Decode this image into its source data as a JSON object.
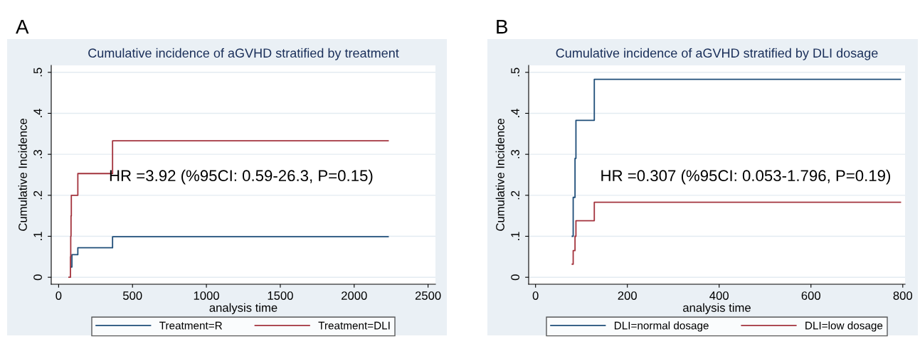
{
  "chart_data": [
    {
      "type": "step",
      "title": "Cumulative incidence of aGVHD stratified by treatment",
      "xlabel": "analysis time",
      "ylabel": "Cumulative Incidence",
      "xlim": [
        -50,
        2550
      ],
      "xticks": [
        0,
        500,
        1000,
        1500,
        2000,
        2500
      ],
      "ylim": [
        -0.017,
        0.517
      ],
      "yticks": [
        {
          "value": 0,
          "label": "0"
        },
        {
          "value": 0.1,
          "label": ".1"
        },
        {
          "value": 0.2,
          "label": ".2"
        },
        {
          "value": 0.3,
          "label": ".3"
        },
        {
          "value": 0.4,
          "label": ".4"
        },
        {
          "value": 0.5,
          "label": ".5"
        }
      ],
      "grid": "y",
      "legend": "bottom",
      "annotations": [
        "A",
        "HR =3.92 (%95CI: 0.59-26.3, P=0.15)"
      ],
      "series": [
        {
          "name": "Treatment=R",
          "color": "#1f4e79",
          "x": [
            85,
            90,
            130,
            365,
            2230
          ],
          "values": [
            0.025,
            0.055,
            0.072,
            0.099,
            0.099
          ]
        },
        {
          "name": "Treatment=DLI",
          "color": "#a3333d",
          "x": [
            70,
            80,
            82,
            84,
            86,
            90,
            130,
            365,
            2230
          ],
          "values": [
            0,
            0.05,
            0.1,
            0.15,
            0.2,
            0.2,
            0.253,
            0.333,
            0.333
          ]
        }
      ]
    },
    {
      "type": "step",
      "title": "Cumulative incidence of aGVHD stratified by DLI dosage",
      "xlabel": "analysis time",
      "ylabel": "Cumulative Incidence",
      "xlim": [
        -15,
        805
      ],
      "xticks": [
        0,
        200,
        400,
        600,
        800
      ],
      "ylim": [
        -0.017,
        0.517
      ],
      "yticks": [
        {
          "value": 0,
          "label": "0"
        },
        {
          "value": 0.1,
          "label": ".1"
        },
        {
          "value": 0.2,
          "label": ".2"
        },
        {
          "value": 0.3,
          "label": ".3"
        },
        {
          "value": 0.4,
          "label": ".4"
        },
        {
          "value": 0.5,
          "label": ".5"
        }
      ],
      "grid": "y",
      "legend": "bottom",
      "annotations": [
        "B",
        "HR =0.307 (%95CI: 0.053-1.796, P=0.19)"
      ],
      "series": [
        {
          "name": "DLI=normal dosage",
          "color": "#1f4e79",
          "x": [
            80,
            82,
            86,
            88,
            128,
            795
          ],
          "values": [
            0.1,
            0.195,
            0.29,
            0.383,
            0.483,
            0.483
          ]
        },
        {
          "name": "DLI=low dosage",
          "color": "#a3333d",
          "x": [
            80,
            82,
            86,
            88,
            128,
            795
          ],
          "values": [
            0.032,
            0.065,
            0.1,
            0.138,
            0.183,
            0.183
          ]
        }
      ]
    }
  ]
}
